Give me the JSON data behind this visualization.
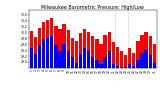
{
  "title": "Milwaukee Barometric Pressure: High/Low",
  "title_fontsize": 3.5,
  "background_color": "#ffffff",
  "high_color": "#ff0000",
  "low_color": "#0000ff",
  "ylim": [
    28.8,
    30.75
  ],
  "ytick_values": [
    29.0,
    29.2,
    29.4,
    29.6,
    29.8,
    30.0,
    30.2,
    30.4,
    30.6
  ],
  "ytick_labels": [
    "29.0",
    "29.2",
    "29.4",
    "29.6",
    "29.8",
    "30.0",
    "30.2",
    "30.4",
    "30.6"
  ],
  "days": [
    "1",
    "2",
    "3",
    "4",
    "5",
    "6",
    "7",
    "8",
    "9",
    "10",
    "11",
    "12",
    "13",
    "14",
    "15",
    "16",
    "17",
    "18",
    "19",
    "20",
    "21",
    "22",
    "23",
    "24",
    "25",
    "26",
    "27",
    "28",
    "29",
    "30",
    "31"
  ],
  "highs": [
    30.05,
    29.85,
    30.15,
    30.35,
    30.42,
    30.48,
    30.22,
    30.12,
    30.28,
    30.08,
    29.82,
    29.72,
    29.98,
    30.12,
    30.02,
    29.88,
    29.78,
    29.62,
    29.92,
    30.02,
    29.68,
    29.52,
    29.38,
    29.22,
    29.48,
    29.32,
    29.72,
    29.92,
    30.02,
    29.88,
    29.62
  ],
  "lows": [
    29.48,
    29.28,
    29.58,
    29.78,
    29.82,
    29.88,
    29.58,
    29.38,
    29.62,
    29.38,
    29.18,
    28.98,
    29.28,
    29.48,
    29.38,
    29.18,
    29.08,
    28.92,
    29.18,
    29.38,
    28.92,
    28.88,
    28.82,
    28.82,
    28.92,
    28.88,
    29.08,
    29.32,
    29.42,
    29.22,
    28.98
  ],
  "vline_x": [
    20.5,
    23.5
  ],
  "bar_width": 0.8,
  "tick_fontsize": 2.2,
  "ylabel_fontsize": 2.5
}
